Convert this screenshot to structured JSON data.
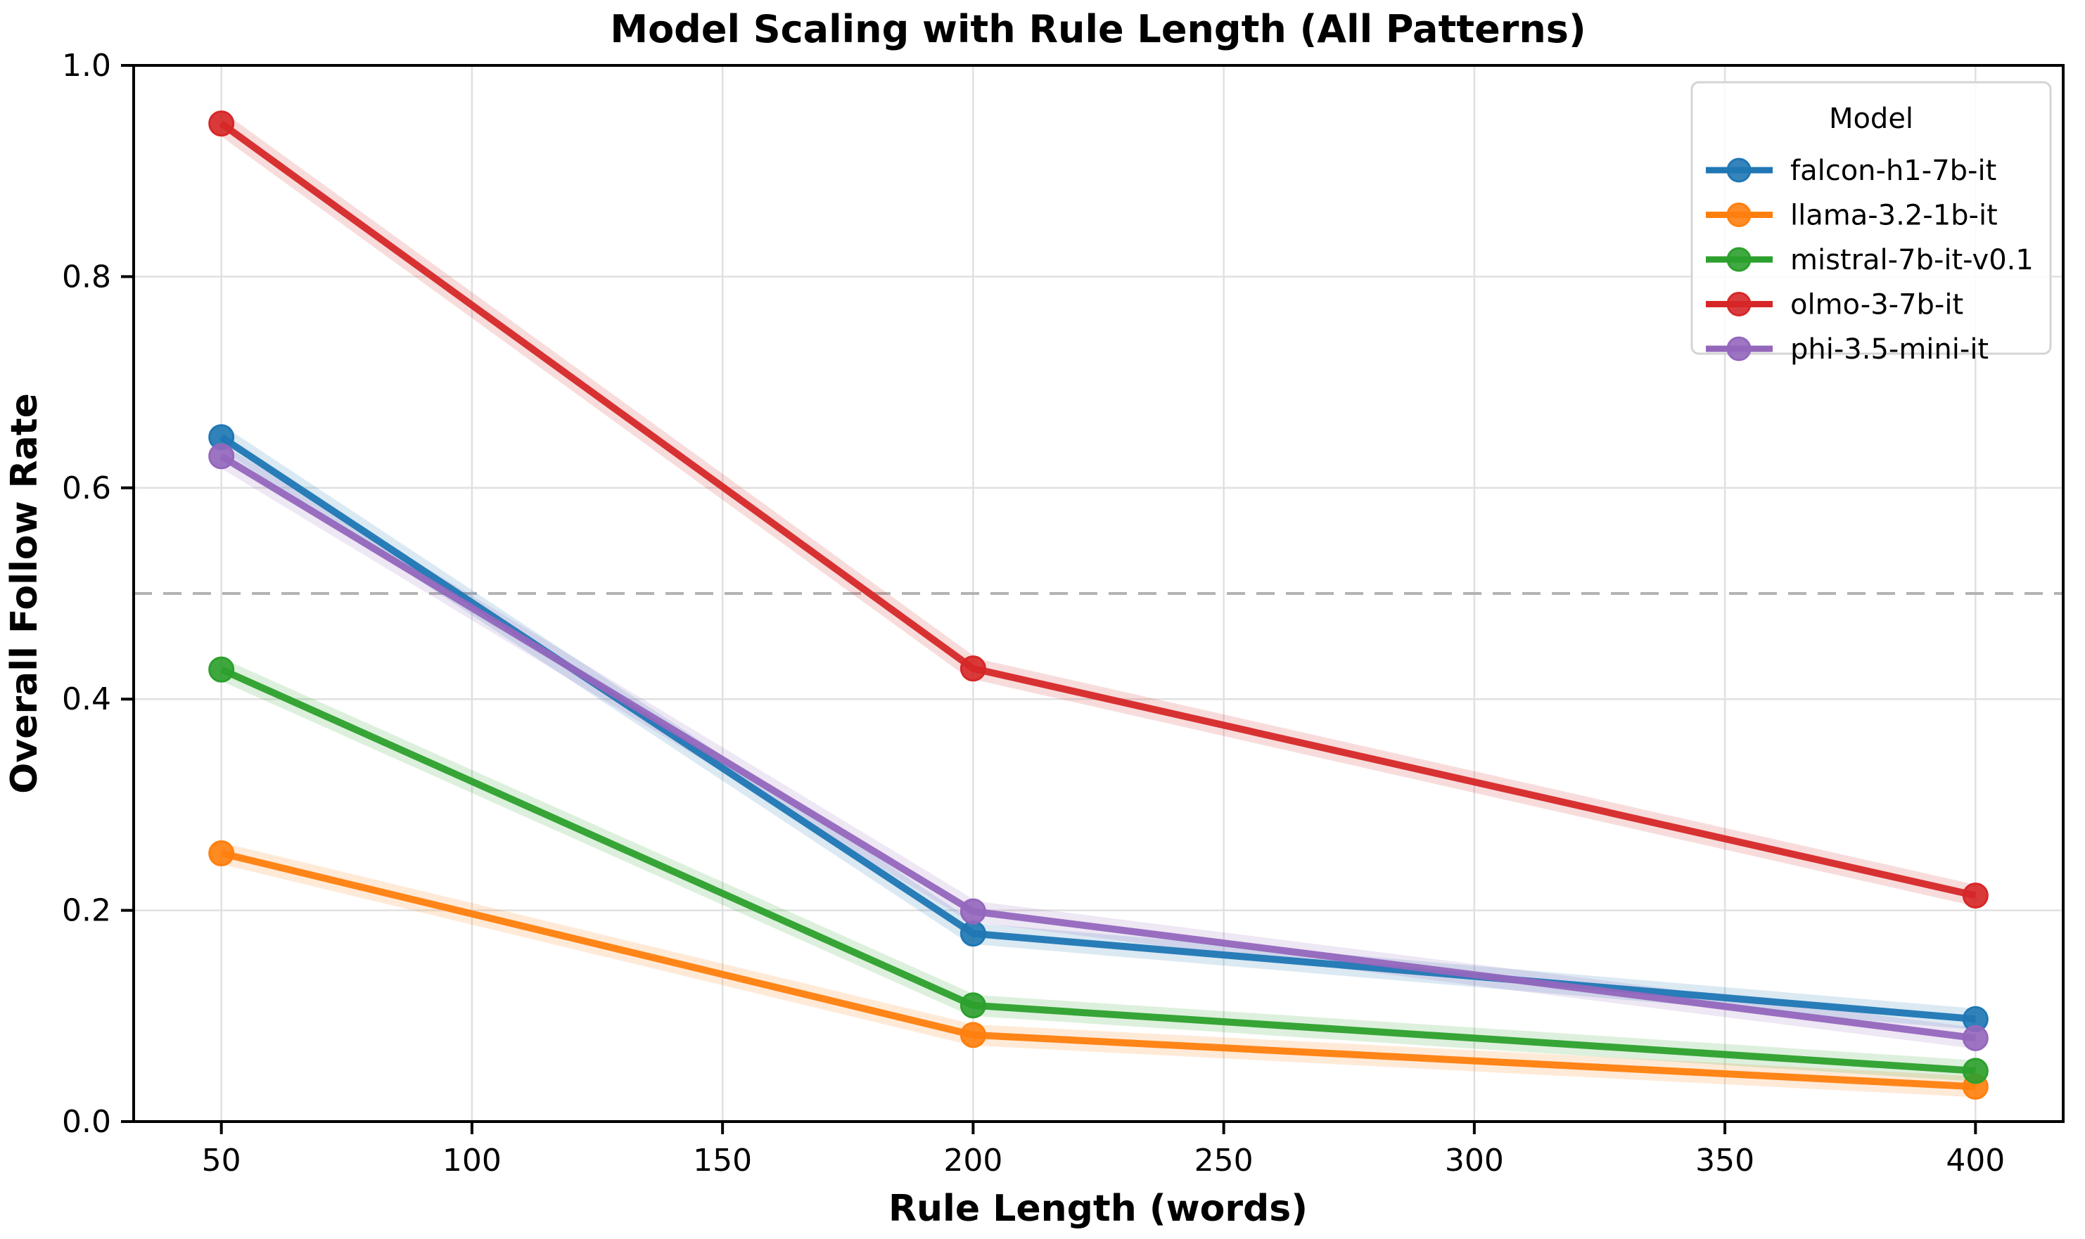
{
  "chart_data": {
    "type": "line",
    "title": "Model Scaling with Rule Length (All Patterns)",
    "xlabel": "Rule Length (words)",
    "ylabel": "Overall Follow Rate",
    "x": [
      50,
      200,
      400
    ],
    "series": [
      {
        "name": "falcon-h1-7b-it",
        "color": "#1f77b4",
        "values": [
          0.648,
          0.178,
          0.097
        ]
      },
      {
        "name": "llama-3.2-1b-it",
        "color": "#ff7f0e",
        "values": [
          0.254,
          0.082,
          0.033
        ]
      },
      {
        "name": "mistral-7b-it-v0.1",
        "color": "#2ca02c",
        "values": [
          0.428,
          0.11,
          0.048
        ]
      },
      {
        "name": "olmo-3-7b-it",
        "color": "#d62728",
        "values": [
          0.945,
          0.429,
          0.214
        ]
      },
      {
        "name": "phi-3.5-mini-it",
        "color": "#9467bd",
        "values": [
          0.63,
          0.199,
          0.079
        ]
      }
    ],
    "xlim": [
      32.5,
      417.5
    ],
    "ylim": [
      0.0,
      1.0
    ],
    "x_tick_labels": [
      "50",
      "100",
      "150",
      "200",
      "250",
      "300",
      "350",
      "400"
    ],
    "y_tick_labels": [
      "0.0",
      "0.2",
      "0.4",
      "0.6",
      "0.8",
      "1.0"
    ],
    "grid": true,
    "grid_color": "#e0e0e0",
    "reference_line": {
      "y": 0.5,
      "style": "dashed",
      "color": "#b3b3b3"
    },
    "legend": {
      "title": "Model",
      "position": "upper right"
    },
    "background_color": "#ffffff",
    "spine_color": "#000000"
  }
}
